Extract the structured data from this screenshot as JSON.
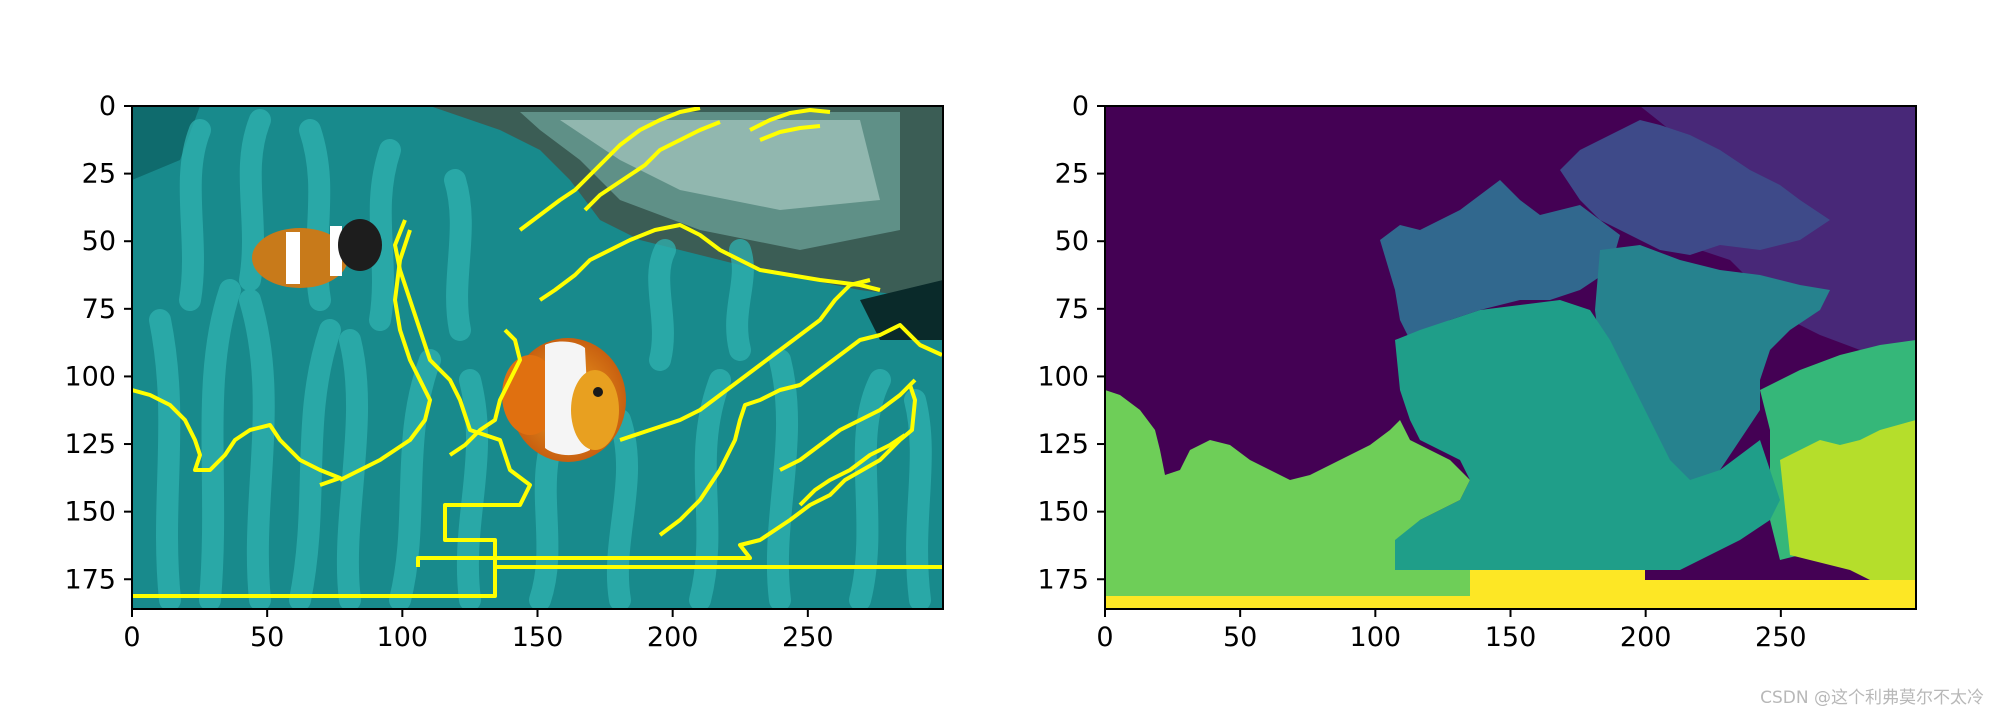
{
  "watermark": "CSDN @这个利弗莫尔不太冷",
  "chart_data": [
    {
      "type": "image",
      "xlim": [
        0,
        300
      ],
      "ylim": [
        186,
        0
      ],
      "xticks": [
        0,
        50,
        100,
        150,
        200,
        250
      ],
      "yticks": [
        0,
        25,
        50,
        75,
        100,
        125,
        150,
        175
      ],
      "xtick_labels": [
        "0",
        "50",
        "100",
        "150",
        "200",
        "250"
      ],
      "ytick_labels": [
        "0",
        "25",
        "50",
        "75",
        "100",
        "125",
        "150",
        "175"
      ],
      "grid": false,
      "content": "photo-with-boundaries",
      "boundary_color": "#ffff00",
      "background_color": "#1a8a8a"
    },
    {
      "type": "heatmap",
      "xlim": [
        0,
        300
      ],
      "ylim": [
        186,
        0
      ],
      "xticks": [
        0,
        50,
        100,
        150,
        200,
        250
      ],
      "yticks": [
        0,
        25,
        50,
        75,
        100,
        125,
        150,
        175
      ],
      "xtick_labels": [
        "0",
        "50",
        "100",
        "150",
        "200",
        "250"
      ],
      "ytick_labels": [
        "0",
        "25",
        "50",
        "75",
        "100",
        "125",
        "150",
        "175"
      ],
      "grid": false,
      "colormap": "viridis",
      "segment_colors": [
        "#440154",
        "#482878",
        "#3e4a89",
        "#31688e",
        "#26828e",
        "#1f9e89",
        "#35b779",
        "#6ece58",
        "#b5de2b",
        "#fde725"
      ]
    }
  ]
}
